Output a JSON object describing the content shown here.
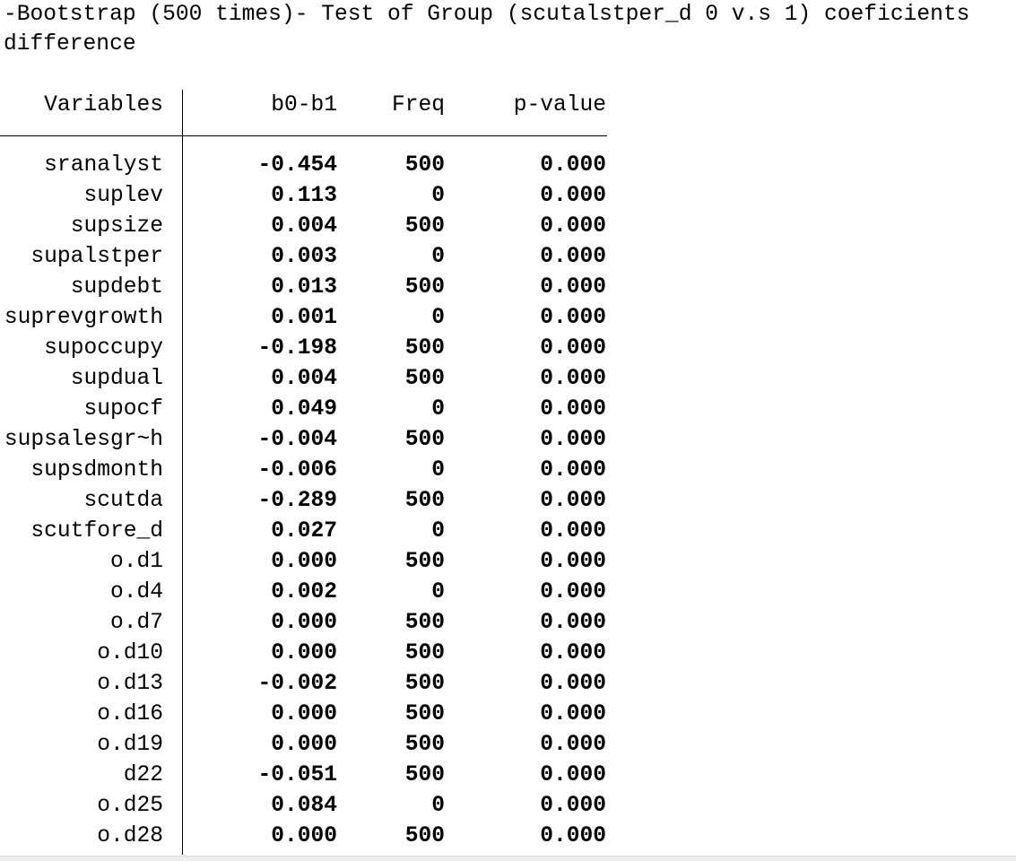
{
  "title": "-Bootstrap (500 times)- Test of Group (scutalstper_d 0 v.s 1) coeficients difference",
  "headers": {
    "variables": "Variables",
    "diff": "b0-b1",
    "freq": "Freq",
    "pvalue": "p-value"
  },
  "rows": [
    [
      "sranalyst",
      "-0.454",
      "500",
      "0.000"
    ],
    [
      "suplev",
      "0.113",
      "0",
      "0.000"
    ],
    [
      "supsize",
      "0.004",
      "500",
      "0.000"
    ],
    [
      "supalstper",
      "0.003",
      "0",
      "0.000"
    ],
    [
      "supdebt",
      "0.013",
      "500",
      "0.000"
    ],
    [
      "suprevgrowth",
      "0.001",
      "0",
      "0.000"
    ],
    [
      "supoccupy",
      "-0.198",
      "500",
      "0.000"
    ],
    [
      "supdual",
      "0.004",
      "500",
      "0.000"
    ],
    [
      "supocf",
      "0.049",
      "0",
      "0.000"
    ],
    [
      "supsalesgr~h",
      "-0.004",
      "500",
      "0.000"
    ],
    [
      "supsdmonth",
      "-0.006",
      "0",
      "0.000"
    ],
    [
      "scutda",
      "-0.289",
      "500",
      "0.000"
    ],
    [
      "scutfore_d",
      "0.027",
      "0",
      "0.000"
    ],
    [
      "o.d1",
      "0.000",
      "500",
      "0.000"
    ],
    [
      "o.d4",
      "0.002",
      "0",
      "0.000"
    ],
    [
      "o.d7",
      "0.000",
      "500",
      "0.000"
    ],
    [
      "o.d10",
      "0.000",
      "500",
      "0.000"
    ],
    [
      "o.d13",
      "-0.002",
      "500",
      "0.000"
    ],
    [
      "o.d16",
      "0.000",
      "500",
      "0.000"
    ],
    [
      "o.d19",
      "0.000",
      "500",
      "0.000"
    ],
    [
      "d22",
      "-0.051",
      "500",
      "0.000"
    ],
    [
      "o.d25",
      "0.084",
      "0",
      "0.000"
    ],
    [
      "o.d28",
      "0.000",
      "500",
      "0.000"
    ]
  ]
}
